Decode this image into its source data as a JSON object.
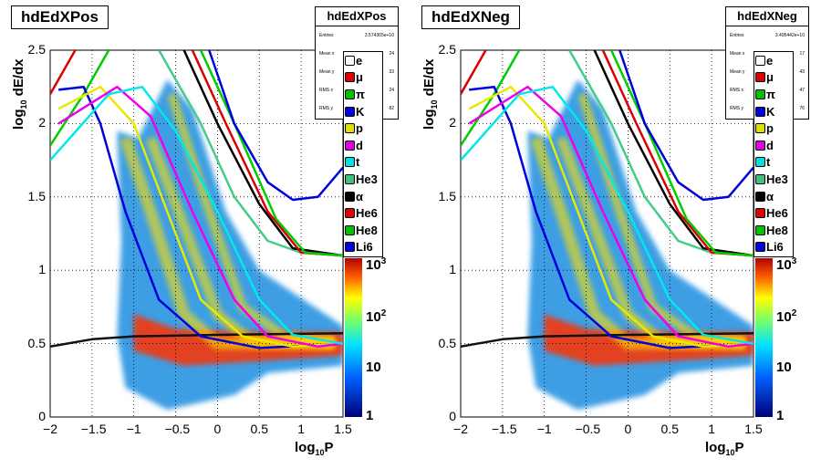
{
  "chart_data": [
    {
      "type": "heatmap",
      "title": "hdEdXPos",
      "xlabel_main": "log",
      "xlabel_sub": "10",
      "xlabel_tail": "P",
      "ylabel_main": "log",
      "ylabel_sub": "10",
      "ylabel_tail": " dE/dx",
      "xlim": [
        -2,
        1.5
      ],
      "ylim": [
        0,
        2.5
      ],
      "x_ticks": [
        "−2",
        "−1.5",
        "−1",
        "−0.5",
        "0",
        "0.5",
        "1",
        "1.5"
      ],
      "y_ticks": [
        "0",
        "0.5",
        "1",
        "1.5",
        "2",
        "2.5"
      ],
      "z_ticks": [
        "1",
        "10",
        "10",
        "10"
      ],
      "z_exps": [
        "",
        "",
        "2",
        "3"
      ],
      "z_log": true,
      "grid": true,
      "stats": {
        "name": "hdEdXPos",
        "rows": [
          {
            "label": "Entries",
            "value": "3.574365e+10"
          },
          {
            "label": "Mean x",
            "value": "24"
          },
          {
            "label": "Mean y",
            "value": "33"
          },
          {
            "label": "RMS x",
            "value": "24"
          },
          {
            "label": "RMS y",
            "value": "82"
          }
        ]
      },
      "legend": [
        "e",
        "μ",
        "π",
        "K",
        "p",
        "d",
        "t",
        "He3",
        "α",
        "He6",
        "He8",
        "Li6"
      ],
      "legend_colors": [
        "#ffffff",
        "#e00000",
        "#00c000",
        "#0000e0",
        "#e0e000",
        "#e000e0",
        "#00e0e0",
        "#40c080",
        "#000000",
        "#e00000",
        "#00c000",
        "#0000e0"
      ],
      "series": [
        {
          "name": "e",
          "color": "#111111",
          "points": [
            [
              -2,
              0.48
            ],
            [
              -1.5,
              0.53
            ],
            [
              -1,
              0.55
            ],
            [
              0,
              0.56
            ],
            [
              1.5,
              0.57
            ]
          ]
        },
        {
          "name": "π",
          "color": "#00cc00",
          "points": [
            [
              -2,
              1.85
            ],
            [
              -1.6,
              2.2
            ],
            [
              -1.3,
              2.5
            ]
          ]
        },
        {
          "name": "μ",
          "color": "#dd0000",
          "points": [
            [
              -2,
              2.2
            ],
            [
              -1.7,
              2.5
            ]
          ]
        },
        {
          "name": "K",
          "color": "#0000dd",
          "points": [
            [
              -1.9,
              2.23
            ],
            [
              -1.6,
              2.25
            ],
            [
              -1.4,
              2.0
            ],
            [
              -1.1,
              1.4
            ],
            [
              -0.7,
              0.8
            ],
            [
              -0.2,
              0.55
            ],
            [
              0.5,
              0.47
            ],
            [
              1.5,
              0.5
            ]
          ]
        },
        {
          "name": "p",
          "color": "#e8e800",
          "points": [
            [
              -1.9,
              2.1
            ],
            [
              -1.4,
              2.25
            ],
            [
              -1.0,
              2.0
            ],
            [
              -0.6,
              1.4
            ],
            [
              -0.2,
              0.8
            ],
            [
              0.3,
              0.55
            ],
            [
              0.9,
              0.48
            ],
            [
              1.5,
              0.5
            ]
          ]
        },
        {
          "name": "d",
          "color": "#ee00ee",
          "points": [
            [
              -1.9,
              2.0
            ],
            [
              -1.2,
              2.25
            ],
            [
              -0.8,
              2.05
            ],
            [
              -0.3,
              1.4
            ],
            [
              0.2,
              0.8
            ],
            [
              0.6,
              0.55
            ],
            [
              1.2,
              0.48
            ],
            [
              1.5,
              0.5
            ]
          ]
        },
        {
          "name": "t",
          "color": "#00e8e8",
          "points": [
            [
              -2,
              1.75
            ],
            [
              -1.3,
              2.2
            ],
            [
              -0.9,
              2.25
            ],
            [
              -0.5,
              1.95
            ],
            [
              0.0,
              1.4
            ],
            [
              0.5,
              0.8
            ],
            [
              0.9,
              0.56
            ],
            [
              1.5,
              0.5
            ]
          ]
        },
        {
          "name": "He3",
          "color": "#44cc88",
          "points": [
            [
              -0.7,
              2.5
            ],
            [
              -0.2,
              2.0
            ],
            [
              0.2,
              1.5
            ],
            [
              0.6,
              1.2
            ],
            [
              1.0,
              1.12
            ],
            [
              1.5,
              1.1
            ]
          ]
        },
        {
          "name": "α",
          "color": "#000000",
          "points": [
            [
              -0.4,
              2.5
            ],
            [
              0.0,
              2.0
            ],
            [
              0.5,
              1.45
            ],
            [
              0.9,
              1.15
            ],
            [
              1.5,
              1.1
            ]
          ]
        },
        {
          "name": "He6",
          "color": "#dd0000",
          "points": [
            [
              -0.3,
              2.5
            ],
            [
              0.1,
              2.0
            ],
            [
              0.6,
              1.4
            ],
            [
              1.0,
              1.12
            ],
            [
              1.5,
              1.1
            ]
          ]
        },
        {
          "name": "He8",
          "color": "#00cc00",
          "points": [
            [
              -0.2,
              2.5
            ],
            [
              0.2,
              2.0
            ],
            [
              0.7,
              1.35
            ],
            [
              1.05,
              1.12
            ],
            [
              1.5,
              1.1
            ]
          ]
        },
        {
          "name": "Li6",
          "color": "#0000dd",
          "points": [
            [
              -0.1,
              2.5
            ],
            [
              0.2,
              2.0
            ],
            [
              0.6,
              1.6
            ],
            [
              0.9,
              1.48
            ],
            [
              1.2,
              1.5
            ],
            [
              1.5,
              1.7
            ]
          ]
        }
      ],
      "bands": [
        {
          "points": [
            [
              -1.1,
              1.9
            ],
            [
              -0.8,
              1.4
            ],
            [
              -0.4,
              0.7
            ],
            [
              0.0,
              0.5
            ],
            [
              1.4,
              0.5
            ]
          ],
          "width": 0.08
        },
        {
          "points": [
            [
              -0.8,
              1.9
            ],
            [
              -0.4,
              1.3
            ],
            [
              0.0,
              0.7
            ],
            [
              0.4,
              0.52
            ],
            [
              1.4,
              0.5
            ]
          ],
          "width": 0.07
        },
        {
          "points": [
            [
              -0.55,
              2.2
            ],
            [
              -0.1,
              1.4
            ],
            [
              0.3,
              0.75
            ],
            [
              0.8,
              0.55
            ],
            [
              1.4,
              0.52
            ]
          ],
          "width": 0.06
        }
      ]
    },
    {
      "type": "heatmap",
      "title": "hdEdXNeg",
      "xlabel_main": "log",
      "xlabel_sub": "10",
      "xlabel_tail": "P",
      "ylabel_main": "log",
      "ylabel_sub": "10",
      "ylabel_tail": " dE/dx",
      "xlim": [
        -2,
        1.5
      ],
      "ylim": [
        0,
        2.5
      ],
      "x_ticks": [
        "−2",
        "−1.5",
        "−1",
        "−0.5",
        "0",
        "0.5",
        "1",
        "1.5"
      ],
      "y_ticks": [
        "0",
        "0.5",
        "1",
        "1.5",
        "2",
        "2.5"
      ],
      "z_ticks": [
        "1",
        "10",
        "10",
        "10"
      ],
      "z_exps": [
        "",
        "",
        "2",
        "3"
      ],
      "z_log": true,
      "grid": true,
      "stats": {
        "name": "hdEdXNeg",
        "rows": [
          {
            "label": "Entries",
            "value": "3.495442e+10"
          },
          {
            "label": "Mean x",
            "value": "17"
          },
          {
            "label": "Mean y",
            "value": "43"
          },
          {
            "label": "RMS x",
            "value": "47"
          },
          {
            "label": "RMS y",
            "value": "76"
          }
        ]
      },
      "legend": [
        "e",
        "μ",
        "π",
        "K",
        "p",
        "d",
        "t",
        "He3",
        "α",
        "He6",
        "He8",
        "Li6"
      ],
      "legend_colors": [
        "#ffffff",
        "#e00000",
        "#00c000",
        "#0000e0",
        "#e0e000",
        "#e000e0",
        "#00e0e0",
        "#40c080",
        "#000000",
        "#e00000",
        "#00c000",
        "#0000e0"
      ],
      "series": [
        {
          "name": "e",
          "color": "#111111",
          "points": [
            [
              -2,
              0.48
            ],
            [
              -1.5,
              0.53
            ],
            [
              -1,
              0.55
            ],
            [
              0,
              0.56
            ],
            [
              1.5,
              0.57
            ]
          ]
        },
        {
          "name": "π",
          "color": "#00cc00",
          "points": [
            [
              -2,
              1.85
            ],
            [
              -1.6,
              2.2
            ],
            [
              -1.3,
              2.5
            ]
          ]
        },
        {
          "name": "μ",
          "color": "#dd0000",
          "points": [
            [
              -2,
              2.2
            ],
            [
              -1.7,
              2.5
            ]
          ]
        },
        {
          "name": "K",
          "color": "#0000dd",
          "points": [
            [
              -1.9,
              2.23
            ],
            [
              -1.6,
              2.25
            ],
            [
              -1.4,
              2.0
            ],
            [
              -1.1,
              1.4
            ],
            [
              -0.7,
              0.8
            ],
            [
              -0.2,
              0.55
            ],
            [
              0.5,
              0.47
            ],
            [
              1.5,
              0.5
            ]
          ]
        },
        {
          "name": "p",
          "color": "#e8e800",
          "points": [
            [
              -1.9,
              2.1
            ],
            [
              -1.4,
              2.25
            ],
            [
              -1.0,
              2.0
            ],
            [
              -0.6,
              1.4
            ],
            [
              -0.2,
              0.8
            ],
            [
              0.3,
              0.55
            ],
            [
              0.9,
              0.48
            ],
            [
              1.5,
              0.5
            ]
          ]
        },
        {
          "name": "d",
          "color": "#ee00ee",
          "points": [
            [
              -1.9,
              2.0
            ],
            [
              -1.2,
              2.25
            ],
            [
              -0.8,
              2.05
            ],
            [
              -0.3,
              1.4
            ],
            [
              0.2,
              0.8
            ],
            [
              0.6,
              0.55
            ],
            [
              1.2,
              0.48
            ],
            [
              1.5,
              0.5
            ]
          ]
        },
        {
          "name": "t",
          "color": "#00e8e8",
          "points": [
            [
              -2,
              1.75
            ],
            [
              -1.3,
              2.2
            ],
            [
              -0.9,
              2.25
            ],
            [
              -0.5,
              1.95
            ],
            [
              0.0,
              1.4
            ],
            [
              0.5,
              0.8
            ],
            [
              0.9,
              0.56
            ],
            [
              1.5,
              0.5
            ]
          ]
        },
        {
          "name": "He3",
          "color": "#44cc88",
          "points": [
            [
              -0.7,
              2.5
            ],
            [
              -0.2,
              2.0
            ],
            [
              0.2,
              1.5
            ],
            [
              0.6,
              1.2
            ],
            [
              1.0,
              1.12
            ],
            [
              1.5,
              1.1
            ]
          ]
        },
        {
          "name": "α",
          "color": "#000000",
          "points": [
            [
              -0.4,
              2.5
            ],
            [
              0.0,
              2.0
            ],
            [
              0.5,
              1.45
            ],
            [
              0.9,
              1.15
            ],
            [
              1.5,
              1.1
            ]
          ]
        },
        {
          "name": "He6",
          "color": "#dd0000",
          "points": [
            [
              -0.3,
              2.5
            ],
            [
              0.1,
              2.0
            ],
            [
              0.6,
              1.4
            ],
            [
              1.0,
              1.12
            ],
            [
              1.5,
              1.1
            ]
          ]
        },
        {
          "name": "He8",
          "color": "#00cc00",
          "points": [
            [
              -0.2,
              2.5
            ],
            [
              0.2,
              2.0
            ],
            [
              0.7,
              1.35
            ],
            [
              1.05,
              1.12
            ],
            [
              1.5,
              1.1
            ]
          ]
        },
        {
          "name": "Li6",
          "color": "#0000dd",
          "points": [
            [
              -0.1,
              2.5
            ],
            [
              0.2,
              2.0
            ],
            [
              0.6,
              1.6
            ],
            [
              0.9,
              1.48
            ],
            [
              1.2,
              1.5
            ],
            [
              1.5,
              1.7
            ]
          ]
        }
      ],
      "bands": [
        {
          "points": [
            [
              -1.1,
              1.9
            ],
            [
              -0.8,
              1.4
            ],
            [
              -0.4,
              0.7
            ],
            [
              0.0,
              0.5
            ],
            [
              1.4,
              0.5
            ]
          ],
          "width": 0.08
        },
        {
          "points": [
            [
              -0.8,
              1.9
            ],
            [
              -0.4,
              1.3
            ],
            [
              0.0,
              0.7
            ],
            [
              0.4,
              0.52
            ],
            [
              1.4,
              0.5
            ]
          ],
          "width": 0.07
        },
        {
          "points": [
            [
              -0.55,
              2.2
            ],
            [
              -0.1,
              1.4
            ],
            [
              0.3,
              0.75
            ],
            [
              0.8,
              0.55
            ],
            [
              1.4,
              0.52
            ]
          ],
          "width": 0.06
        }
      ]
    }
  ]
}
